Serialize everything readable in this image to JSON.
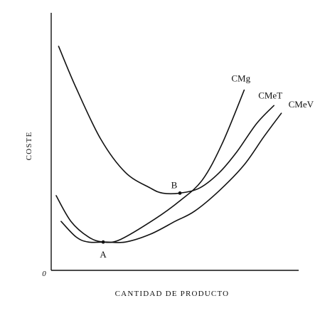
{
  "chart_data": {
    "type": "line",
    "xlabel": "CANTIDAD DE PRODUCTO",
    "ylabel": "COSTE",
    "origin_label": "0",
    "xlim": [
      0,
      100
    ],
    "ylim": [
      0,
      100
    ],
    "grid": false,
    "ticks": false,
    "series": [
      {
        "name": "CMg",
        "x": [
          2,
          8,
          15,
          21,
          28,
          42,
          52,
          61,
          69,
          78
        ],
        "y": [
          29,
          19,
          13,
          11,
          12,
          20,
          27,
          35,
          49,
          70
        ]
      },
      {
        "name": "CMeT",
        "x": [
          3,
          10,
          20,
          30,
          40,
          45,
          52,
          60,
          68,
          75,
          83,
          90
        ],
        "y": [
          87,
          71,
          51,
          38,
          32,
          30,
          30,
          32,
          38,
          46,
          57,
          64
        ]
      },
      {
        "name": "CMeV",
        "x": [
          4,
          10,
          15,
          22,
          30,
          40,
          50,
          58,
          68,
          78,
          86,
          93
        ],
        "y": [
          19,
          13,
          11,
          11,
          11,
          14,
          19,
          23,
          31,
          41,
          52,
          61
        ]
      }
    ],
    "annotations": [
      {
        "text": "A",
        "x": 21,
        "y": 11
      },
      {
        "text": "B",
        "x": 52,
        "y": 30
      }
    ]
  }
}
